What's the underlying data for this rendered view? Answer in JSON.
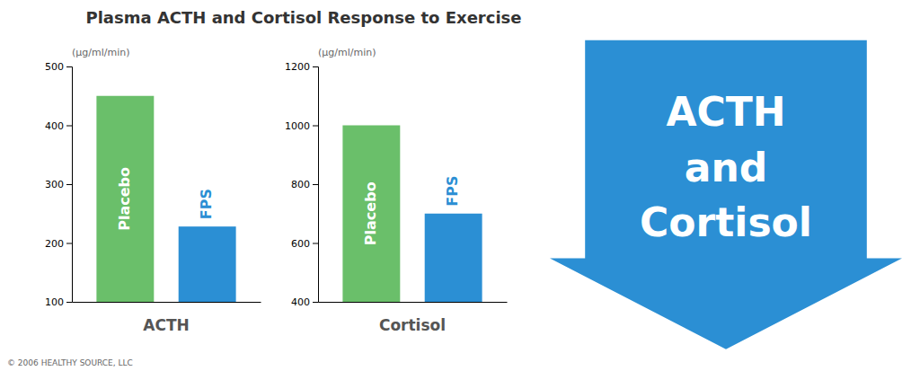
{
  "title": "Plasma ACTH and Cortisol Response to Exercise",
  "annotations": [
    "ACTH",
    "and",
    "Cortisol",
    "© 2006 HEALTHY SOURCE, LLC"
  ],
  "chart_data": [
    {
      "type": "bar",
      "categories": [
        "Placebo",
        "FPS"
      ],
      "values": [
        450,
        228
      ],
      "colors": [
        "#6abf6a",
        "#2b8fd4"
      ],
      "xlabel": "ACTH",
      "ylabel": "(µg/ml/min)",
      "ylim": [
        100,
        500
      ],
      "yticks": [
        100,
        200,
        300,
        400,
        500
      ],
      "grid": false,
      "tick_labels": "y"
    },
    {
      "type": "bar",
      "categories": [
        "Placebo",
        "FPS"
      ],
      "values": [
        1000,
        700
      ],
      "colors": [
        "#6abf6a",
        "#2b8fd4"
      ],
      "xlabel": "Cortisol",
      "ylabel": "(µg/ml/min)",
      "ylim": [
        400,
        1200
      ],
      "yticks": [
        400,
        600,
        800,
        1000,
        1200
      ],
      "grid": false,
      "tick_labels": "y"
    }
  ]
}
